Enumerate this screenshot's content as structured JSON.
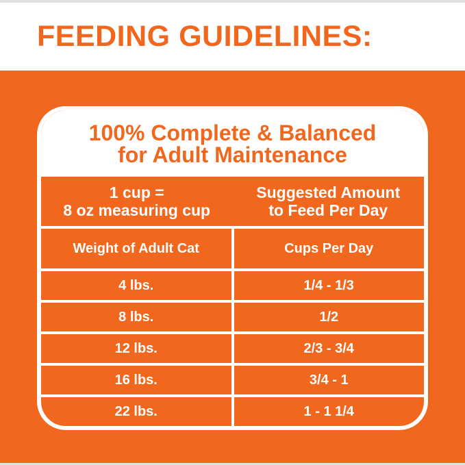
{
  "header": {
    "title": "FEEDING GUIDELINES:"
  },
  "card": {
    "heading": {
      "line1": "100% Complete & Balanced",
      "line2": "for Adult Maintenance"
    },
    "table": {
      "header_left": {
        "line1": "1 cup =",
        "line2": "8 oz measuring cup"
      },
      "header_right": {
        "line1": "Suggested Amount",
        "line2": "to Feed Per Day"
      },
      "columns": {
        "left": "Weight of Adult Cat",
        "right": "Cups Per Day"
      },
      "rows": [
        {
          "weight": "4 lbs.",
          "cups": "1/4 - 1/3"
        },
        {
          "weight": "8 lbs.",
          "cups": "1/2"
        },
        {
          "weight": "12 lbs.",
          "cups": "2/3 - 3/4"
        },
        {
          "weight": "16 lbs.",
          "cups": "3/4 - 1"
        },
        {
          "weight": "22 lbs.",
          "cups": "1 - 1 1/4"
        }
      ]
    }
  },
  "colors": {
    "orange": "#f1671d",
    "white": "#ffffff",
    "edge_strip_gray": "#e1e1e3"
  },
  "chart_data": {
    "type": "table",
    "title": "FEEDING GUIDELINES: 100% Complete & Balanced for Adult Maintenance",
    "note": "1 cup = 8 oz measuring cup; Suggested Amount to Feed Per Day",
    "columns": [
      "Weight of Adult Cat",
      "Cups Per Day"
    ],
    "rows": [
      [
        "4 lbs.",
        "1/4 - 1/3"
      ],
      [
        "8 lbs.",
        "1/2"
      ],
      [
        "12 lbs.",
        "2/3 - 3/4"
      ],
      [
        "16 lbs.",
        "3/4 - 1"
      ],
      [
        "22 lbs.",
        "1 - 1 1/4"
      ]
    ]
  }
}
